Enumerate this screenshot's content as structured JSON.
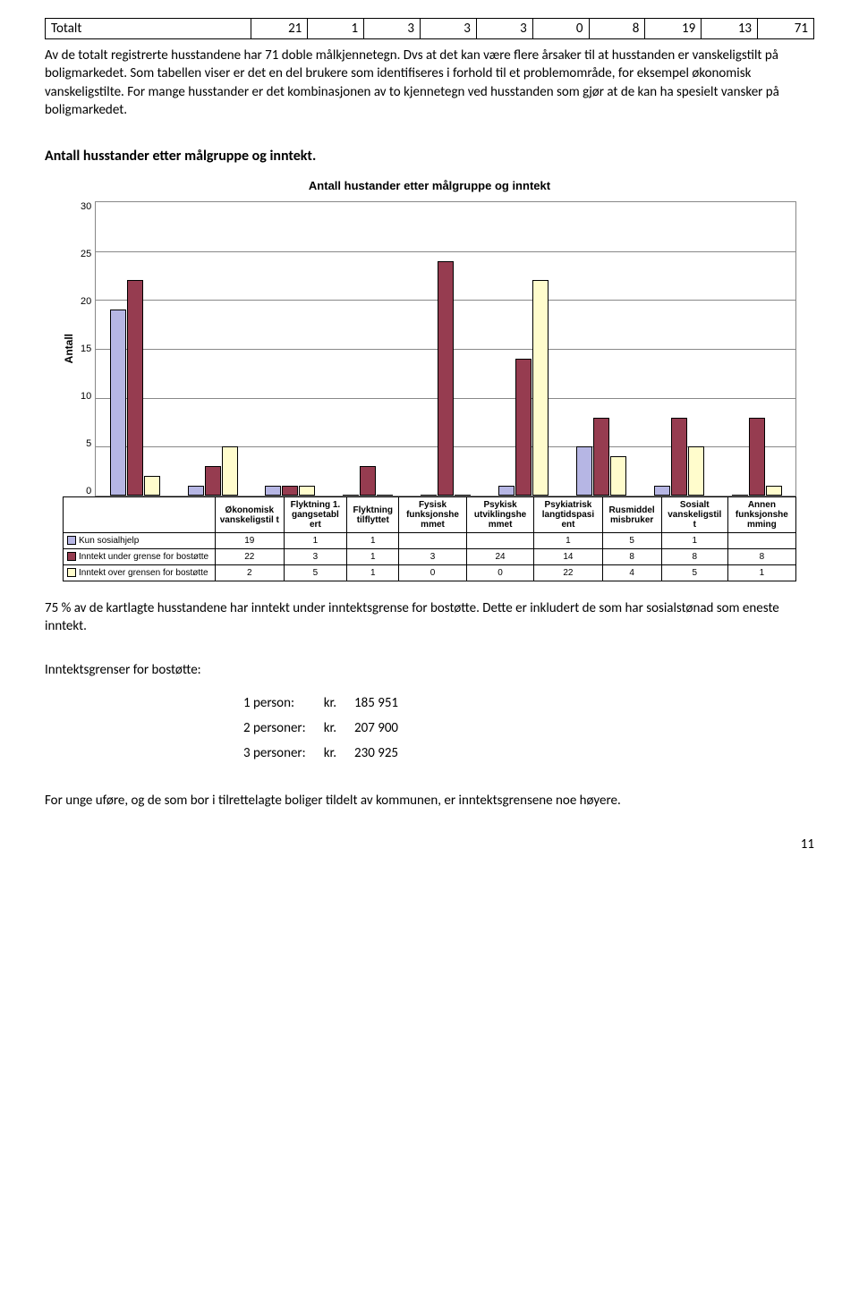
{
  "topTable": {
    "label": "Totalt",
    "values": [
      "21",
      "1",
      "3",
      "3",
      "3",
      "0",
      "8",
      "19",
      "13",
      "71"
    ]
  },
  "para1": "Av de totalt registrerte husstandene har 71 doble målkjennetegn. Dvs at det kan være flere årsaker til at husstanden er vanskeligstilt på boligmarkedet. Som tabellen viser er det en del brukere som identifiseres i forhold til et problemområde, for eksempel økonomisk vanskeligstilte. For mange husstander er det kombinasjonen av to kjennetegn ved husstanden som gjør at de kan ha spesielt vansker på boligmarkedet.",
  "sectionTitle": "Antall husstander etter målgruppe og inntekt.",
  "chart": {
    "title": "Antall hustander etter målgruppe og inntekt",
    "yLabel": "Antall",
    "yMax": 30,
    "yTicks": [
      "30",
      "25",
      "20",
      "15",
      "10",
      "5",
      "0"
    ],
    "categories": [
      "Økonomisk vanskeligstil t",
      "Flyktning 1. gangsetabl ert",
      "Flyktning tilflyttet",
      "Fysisk funksjonshe mmet",
      "Psykisk utviklingshe mmet",
      "Psykiatrisk langtidspasi ent",
      "Rusmiddel misbruker",
      "Sosialt vanskeligstil t",
      "Annen funksjonshe mming"
    ],
    "series": [
      {
        "label": "Kun sosialhjelp",
        "color": "#b6b6e4",
        "values": [
          19,
          1,
          1,
          null,
          null,
          1,
          5,
          1,
          null
        ]
      },
      {
        "label": "Inntekt under grense for bostøtte",
        "color": "#963c50",
        "values": [
          22,
          3,
          1,
          3,
          24,
          14,
          8,
          8,
          8
        ]
      },
      {
        "label": "Inntekt over grensen for bostøtte",
        "color": "#fffccc",
        "values": [
          2,
          5,
          1,
          0,
          0,
          22,
          4,
          5,
          1
        ]
      }
    ]
  },
  "para2": "75 % av de kartlagte husstandene har inntekt under inntektsgrense for bostøtte. Dette er inkludert de som  har sosialstønad som eneste inntekt.",
  "incomeTitle": "Inntektsgrenser for bostøtte:",
  "incomeRows": [
    {
      "persons": "1 person:",
      "kr": "kr.",
      "amount": "185 951"
    },
    {
      "persons": "2 personer:",
      "kr": "kr.",
      "amount": "207 900"
    },
    {
      "persons": "3 personer:",
      "kr": "kr.",
      "amount": "230 925"
    }
  ],
  "para3": "For unge uføre, og de som bor i tilrettelagte boliger tildelt av kommunen, er inntektsgrensene noe høyere.",
  "pageNum": "11"
}
